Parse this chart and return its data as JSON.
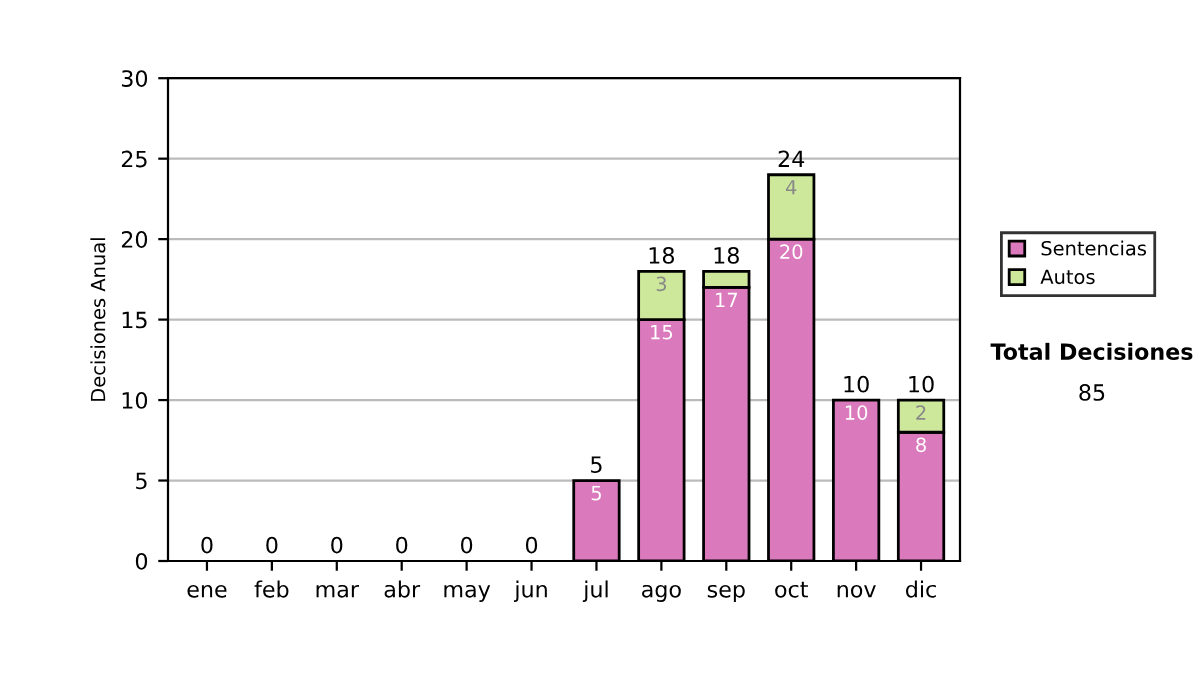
{
  "chart_data": {
    "type": "bar",
    "stacked": true,
    "ylabel": "Decisiones Anual",
    "categories": [
      "ene",
      "feb",
      "mar",
      "abr",
      "may",
      "jun",
      "jul",
      "ago",
      "sep",
      "oct",
      "nov",
      "dic"
    ],
    "series": [
      {
        "name": "Sentencias",
        "color": "#db79bd",
        "values": [
          null,
          null,
          null,
          null,
          null,
          null,
          5,
          15,
          17,
          20,
          10,
          8
        ],
        "value_labels": [
          null,
          null,
          null,
          null,
          null,
          null,
          "5",
          "15",
          "17",
          "20",
          "10",
          "8"
        ]
      },
      {
        "name": "Autos",
        "color": "#cde89b",
        "values": [
          null,
          null,
          null,
          null,
          null,
          null,
          null,
          3,
          1,
          4,
          null,
          2
        ],
        "value_labels": [
          null,
          null,
          null,
          null,
          null,
          null,
          null,
          "3",
          null,
          "4",
          null,
          "2"
        ]
      }
    ],
    "totals": [
      "0",
      "0",
      "0",
      "0",
      "0",
      "0",
      "5",
      "18",
      "18",
      "24",
      "10",
      "10"
    ],
    "ylim": [
      0,
      30
    ],
    "yticks": [
      0,
      5,
      10,
      15,
      20,
      25,
      30
    ],
    "grid": "y",
    "legend": "right",
    "annotations": [
      "Total Decisiones",
      "85"
    ]
  }
}
